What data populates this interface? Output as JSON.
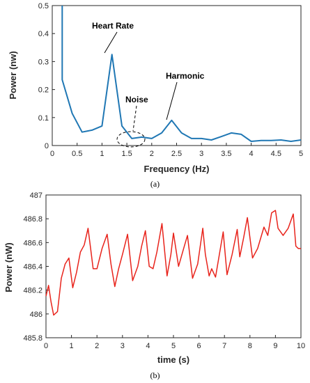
{
  "chart_data": [
    {
      "type": "line",
      "panel_label": "(a)",
      "xlabel": "Frequency (Hz)",
      "ylabel": "Power (nw)",
      "xlim": [
        0,
        5
      ],
      "ylim": [
        0,
        0.5
      ],
      "xticks": [
        "0",
        "0.5",
        "1",
        "1.5",
        "2",
        "2.5",
        "3",
        "3.5",
        "4",
        "4.5",
        "5"
      ],
      "yticks": [
        "0",
        "0.1",
        "0.2",
        "0.3",
        "0.4",
        "0.5"
      ],
      "grid": false,
      "color": "#1f77b4",
      "x": [
        0.2,
        0.2,
        0.4,
        0.6,
        0.8,
        1.0,
        1.2,
        1.4,
        1.6,
        1.8,
        2.0,
        2.2,
        2.4,
        2.6,
        2.8,
        3.0,
        3.2,
        3.4,
        3.6,
        3.8,
        4.0,
        4.2,
        4.4,
        4.6,
        4.8,
        5.0
      ],
      "y": [
        0.5,
        0.235,
        0.115,
        0.048,
        0.055,
        0.07,
        0.325,
        0.07,
        0.025,
        0.03,
        0.025,
        0.045,
        0.09,
        0.045,
        0.025,
        0.025,
        0.02,
        0.032,
        0.045,
        0.04,
        0.015,
        0.018,
        0.018,
        0.02,
        0.015,
        0.02
      ],
      "annotations": [
        {
          "text": "Heart Rate",
          "x": 1.2,
          "y": 0.325
        },
        {
          "text": "Noise",
          "x": 1.8,
          "y": 0.03
        },
        {
          "text": "Harmonic",
          "x": 2.4,
          "y": 0.09
        }
      ]
    },
    {
      "type": "line",
      "panel_label": "(b)",
      "xlabel": "time (s)",
      "ylabel": "Power (nW)",
      "xlim": [
        0,
        10
      ],
      "ylim": [
        485.8,
        487
      ],
      "xticks": [
        "0",
        "1",
        "2",
        "3",
        "4",
        "5",
        "6",
        "7",
        "8",
        "9",
        "10"
      ],
      "yticks": [
        "485.8",
        "486",
        "486.2",
        "486.4",
        "486.6",
        "486.8",
        "487"
      ],
      "grid": false,
      "color": "#e8231b",
      "x": [
        0,
        0.1,
        0.2,
        0.3,
        0.45,
        0.6,
        0.75,
        0.9,
        1.05,
        1.2,
        1.35,
        1.5,
        1.65,
        1.75,
        1.85,
        2.0,
        2.2,
        2.4,
        2.55,
        2.7,
        2.85,
        3.0,
        3.2,
        3.4,
        3.6,
        3.75,
        3.9,
        4.05,
        4.2,
        4.35,
        4.55,
        4.75,
        4.9,
        5.0,
        5.2,
        5.4,
        5.55,
        5.75,
        5.95,
        6.15,
        6.25,
        6.4,
        6.5,
        6.65,
        6.8,
        6.95,
        7.1,
        7.3,
        7.5,
        7.6,
        7.75,
        7.9,
        8.1,
        8.3,
        8.55,
        8.7,
        8.85,
        9.0,
        9.1,
        9.3,
        9.5,
        9.7,
        9.8,
        9.9,
        10.0
      ],
      "y": [
        486.15,
        486.24,
        486.1,
        485.99,
        486.02,
        486.3,
        486.42,
        486.47,
        486.22,
        486.35,
        486.52,
        486.58,
        486.72,
        486.55,
        486.38,
        486.38,
        486.55,
        486.67,
        486.42,
        486.23,
        486.38,
        486.5,
        486.67,
        486.28,
        486.4,
        486.57,
        486.7,
        486.4,
        486.38,
        486.52,
        486.76,
        486.32,
        486.5,
        486.68,
        486.4,
        486.55,
        486.66,
        486.3,
        486.42,
        486.72,
        486.5,
        486.32,
        486.38,
        486.31,
        486.5,
        486.69,
        486.33,
        486.5,
        486.71,
        486.48,
        486.64,
        486.81,
        486.47,
        486.55,
        486.73,
        486.66,
        486.85,
        486.87,
        486.72,
        486.66,
        486.72,
        486.84,
        486.57,
        486.55,
        486.55
      ]
    }
  ]
}
